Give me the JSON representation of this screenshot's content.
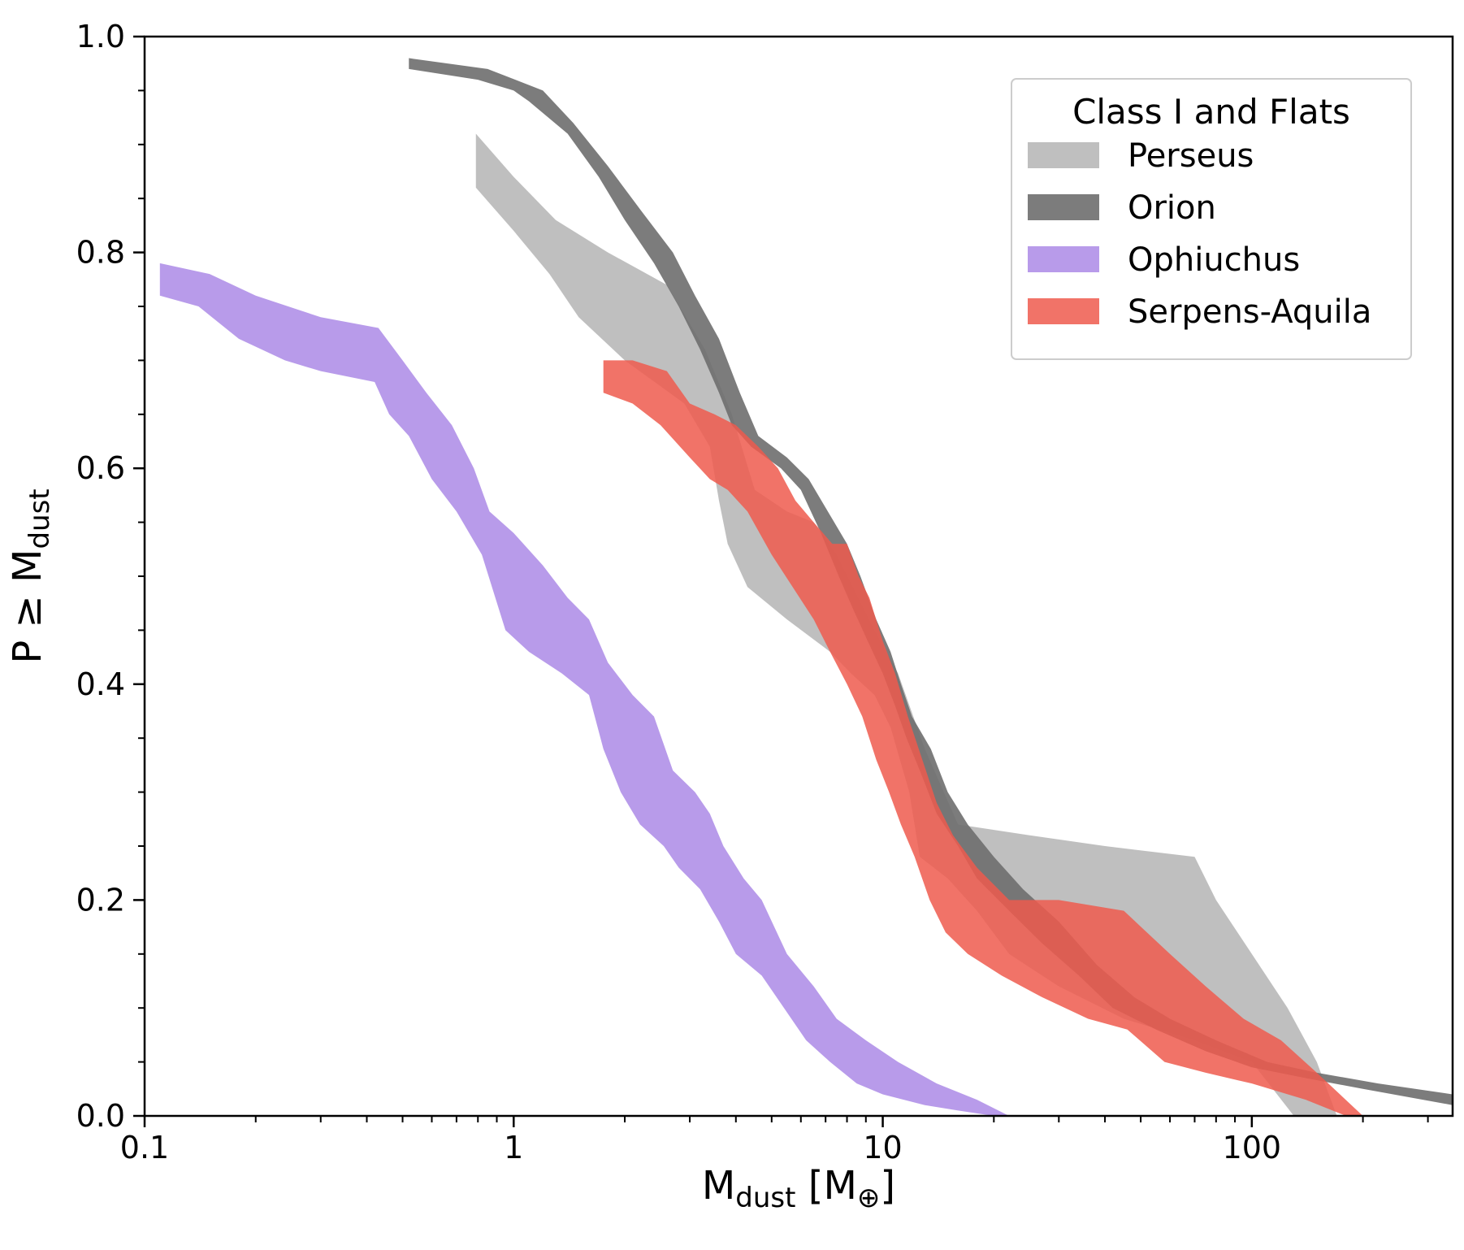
{
  "chart_data": {
    "type": "area",
    "xlabel": {
      "main": "M",
      "sub": "dust",
      "unit_open": " [M",
      "unit_sub": "⊕",
      "unit_close": "]"
    },
    "ylabel": {
      "main": "P ≥ M",
      "sub": "dust"
    },
    "x_scale": "log",
    "xlim": [
      0.1,
      350
    ],
    "ylim": [
      0.0,
      1.0
    ],
    "x_major_ticks": [
      {
        "value": 0.1,
        "label": "0.1"
      },
      {
        "value": 1,
        "label": "1"
      },
      {
        "value": 10,
        "label": "10"
      },
      {
        "value": 100,
        "label": "100"
      }
    ],
    "y_major_ticks": [
      {
        "value": 0.0,
        "label": "0.0"
      },
      {
        "value": 0.2,
        "label": "0.2"
      },
      {
        "value": 0.4,
        "label": "0.4"
      },
      {
        "value": 0.6,
        "label": "0.6"
      },
      {
        "value": 0.8,
        "label": "0.8"
      },
      {
        "value": 1.0,
        "label": "1.0"
      }
    ],
    "grid": false,
    "legend": {
      "title": "Class I and Flats",
      "placement": "top-right",
      "entries": [
        "Perseus",
        "Orion",
        "Ophiuchus",
        "Serpens-Aquila"
      ]
    },
    "series": [
      {
        "name": "Perseus",
        "color": "#b8b8b8",
        "opacity": 0.9,
        "upper": [
          [
            0.79,
            0.91
          ],
          [
            1.0,
            0.87
          ],
          [
            1.3,
            0.83
          ],
          [
            1.8,
            0.8
          ],
          [
            2.6,
            0.77
          ],
          [
            3.3,
            0.71
          ],
          [
            3.9,
            0.65
          ],
          [
            4.5,
            0.58
          ],
          [
            5.5,
            0.56
          ],
          [
            6.5,
            0.55
          ],
          [
            7.5,
            0.52
          ],
          [
            9.5,
            0.45
          ],
          [
            11,
            0.41
          ],
          [
            13,
            0.34
          ],
          [
            16,
            0.27
          ],
          [
            25,
            0.26
          ],
          [
            40,
            0.25
          ],
          [
            70,
            0.24
          ],
          [
            80,
            0.2
          ],
          [
            100,
            0.15
          ],
          [
            125,
            0.1
          ],
          [
            150,
            0.05
          ],
          [
            170,
            0.0
          ]
        ],
        "lower": [
          [
            0.79,
            0.86
          ],
          [
            1.0,
            0.82
          ],
          [
            1.25,
            0.78
          ],
          [
            1.5,
            0.74
          ],
          [
            2.0,
            0.7
          ],
          [
            2.9,
            0.66
          ],
          [
            3.4,
            0.62
          ],
          [
            3.6,
            0.57
          ],
          [
            3.8,
            0.53
          ],
          [
            4.3,
            0.49
          ],
          [
            5.5,
            0.46
          ],
          [
            7.2,
            0.43
          ],
          [
            8.2,
            0.41
          ],
          [
            9.5,
            0.39
          ],
          [
            10.5,
            0.36
          ],
          [
            11.8,
            0.3
          ],
          [
            12.6,
            0.24
          ],
          [
            15,
            0.22
          ],
          [
            18,
            0.19
          ],
          [
            22,
            0.15
          ],
          [
            30,
            0.12
          ],
          [
            45,
            0.09
          ],
          [
            70,
            0.07
          ],
          [
            100,
            0.05
          ],
          [
            130,
            0.0
          ]
        ]
      },
      {
        "name": "Orion",
        "color": "#6e6e6e",
        "opacity": 0.9,
        "upper": [
          [
            0.52,
            0.98
          ],
          [
            0.85,
            0.97
          ],
          [
            1.2,
            0.95
          ],
          [
            1.45,
            0.92
          ],
          [
            1.8,
            0.88
          ],
          [
            2.2,
            0.84
          ],
          [
            2.7,
            0.8
          ],
          [
            3.1,
            0.76
          ],
          [
            3.6,
            0.72
          ],
          [
            4.1,
            0.67
          ],
          [
            4.6,
            0.63
          ],
          [
            5.5,
            0.61
          ],
          [
            6.3,
            0.59
          ],
          [
            7.1,
            0.56
          ],
          [
            8.0,
            0.53
          ],
          [
            8.7,
            0.5
          ],
          [
            9.6,
            0.46
          ],
          [
            10.5,
            0.43
          ],
          [
            11.2,
            0.4
          ],
          [
            12,
            0.37
          ],
          [
            13.5,
            0.34
          ],
          [
            15,
            0.3
          ],
          [
            17,
            0.27
          ],
          [
            20,
            0.24
          ],
          [
            24,
            0.21
          ],
          [
            30,
            0.18
          ],
          [
            38,
            0.14
          ],
          [
            48,
            0.11
          ],
          [
            60,
            0.09
          ],
          [
            80,
            0.07
          ],
          [
            110,
            0.05
          ],
          [
            150,
            0.04
          ],
          [
            220,
            0.03
          ],
          [
            350,
            0.02
          ]
        ],
        "lower": [
          [
            0.52,
            0.97
          ],
          [
            0.8,
            0.96
          ],
          [
            1.0,
            0.95
          ],
          [
            1.1,
            0.94
          ],
          [
            1.4,
            0.91
          ],
          [
            1.7,
            0.87
          ],
          [
            2.0,
            0.83
          ],
          [
            2.4,
            0.79
          ],
          [
            2.8,
            0.75
          ],
          [
            3.2,
            0.71
          ],
          [
            3.6,
            0.67
          ],
          [
            3.9,
            0.64
          ],
          [
            4.4,
            0.62
          ],
          [
            5.3,
            0.6
          ],
          [
            6.0,
            0.58
          ],
          [
            6.8,
            0.54
          ],
          [
            7.6,
            0.5
          ],
          [
            8.3,
            0.47
          ],
          [
            9.1,
            0.44
          ],
          [
            10.0,
            0.41
          ],
          [
            10.8,
            0.38
          ],
          [
            11.6,
            0.35
          ],
          [
            12.6,
            0.32
          ],
          [
            14,
            0.28
          ],
          [
            16,
            0.25
          ],
          [
            18,
            0.22
          ],
          [
            22,
            0.19
          ],
          [
            27,
            0.16
          ],
          [
            34,
            0.13
          ],
          [
            42,
            0.1
          ],
          [
            55,
            0.08
          ],
          [
            75,
            0.06
          ],
          [
            100,
            0.045
          ],
          [
            140,
            0.035
          ],
          [
            200,
            0.025
          ],
          [
            350,
            0.01
          ]
        ]
      },
      {
        "name": "Ophiuchus",
        "color": "#b090e8",
        "opacity": 0.9,
        "upper": [
          [
            0.11,
            0.79
          ],
          [
            0.15,
            0.78
          ],
          [
            0.2,
            0.76
          ],
          [
            0.3,
            0.74
          ],
          [
            0.43,
            0.73
          ],
          [
            0.5,
            0.7
          ],
          [
            0.58,
            0.67
          ],
          [
            0.68,
            0.64
          ],
          [
            0.78,
            0.6
          ],
          [
            0.86,
            0.56
          ],
          [
            1.0,
            0.54
          ],
          [
            1.2,
            0.51
          ],
          [
            1.4,
            0.48
          ],
          [
            1.6,
            0.46
          ],
          [
            1.8,
            0.42
          ],
          [
            2.1,
            0.39
          ],
          [
            2.4,
            0.37
          ],
          [
            2.7,
            0.32
          ],
          [
            3.1,
            0.3
          ],
          [
            3.4,
            0.28
          ],
          [
            3.7,
            0.25
          ],
          [
            4.2,
            0.22
          ],
          [
            4.7,
            0.2
          ],
          [
            5.5,
            0.15
          ],
          [
            6.5,
            0.12
          ],
          [
            7.5,
            0.09
          ],
          [
            9,
            0.07
          ],
          [
            11,
            0.05
          ],
          [
            14,
            0.03
          ],
          [
            18,
            0.015
          ],
          [
            22,
            0.0
          ]
        ],
        "lower": [
          [
            0.11,
            0.76
          ],
          [
            0.14,
            0.75
          ],
          [
            0.18,
            0.72
          ],
          [
            0.24,
            0.7
          ],
          [
            0.3,
            0.69
          ],
          [
            0.42,
            0.68
          ],
          [
            0.46,
            0.65
          ],
          [
            0.52,
            0.63
          ],
          [
            0.6,
            0.59
          ],
          [
            0.7,
            0.56
          ],
          [
            0.82,
            0.52
          ],
          [
            0.95,
            0.45
          ],
          [
            1.1,
            0.43
          ],
          [
            1.35,
            0.41
          ],
          [
            1.6,
            0.39
          ],
          [
            1.75,
            0.34
          ],
          [
            1.95,
            0.3
          ],
          [
            2.2,
            0.27
          ],
          [
            2.55,
            0.25
          ],
          [
            2.8,
            0.23
          ],
          [
            3.2,
            0.21
          ],
          [
            3.6,
            0.18
          ],
          [
            4.0,
            0.15
          ],
          [
            4.7,
            0.13
          ],
          [
            5.4,
            0.1
          ],
          [
            6.2,
            0.07
          ],
          [
            7.2,
            0.05
          ],
          [
            8.5,
            0.03
          ],
          [
            10,
            0.02
          ],
          [
            13,
            0.01
          ],
          [
            16,
            0.005
          ],
          [
            20,
            0.0
          ]
        ]
      },
      {
        "name": "Serpens-Aquila",
        "color": "#ee5a4d",
        "opacity": 0.85,
        "upper": [
          [
            1.75,
            0.7
          ],
          [
            2.1,
            0.7
          ],
          [
            2.6,
            0.69
          ],
          [
            3.0,
            0.66
          ],
          [
            3.5,
            0.65
          ],
          [
            4.0,
            0.64
          ],
          [
            4.6,
            0.62
          ],
          [
            5.2,
            0.6
          ],
          [
            5.8,
            0.57
          ],
          [
            6.5,
            0.55
          ],
          [
            7.3,
            0.53
          ],
          [
            8.0,
            0.53
          ],
          [
            8.6,
            0.5
          ],
          [
            9.2,
            0.48
          ],
          [
            10.0,
            0.44
          ],
          [
            10.8,
            0.41
          ],
          [
            11.7,
            0.37
          ],
          [
            12.8,
            0.33
          ],
          [
            14.0,
            0.29
          ],
          [
            15.5,
            0.26
          ],
          [
            18,
            0.23
          ],
          [
            22,
            0.2
          ],
          [
            30,
            0.2
          ],
          [
            45,
            0.19
          ],
          [
            60,
            0.15
          ],
          [
            75,
            0.12
          ],
          [
            95,
            0.09
          ],
          [
            120,
            0.07
          ],
          [
            150,
            0.04
          ],
          [
            200,
            0.0
          ]
        ],
        "lower": [
          [
            1.75,
            0.67
          ],
          [
            2.1,
            0.66
          ],
          [
            2.5,
            0.64
          ],
          [
            3.0,
            0.61
          ],
          [
            3.4,
            0.59
          ],
          [
            3.8,
            0.58
          ],
          [
            4.3,
            0.56
          ],
          [
            5.0,
            0.52
          ],
          [
            5.7,
            0.49
          ],
          [
            6.5,
            0.46
          ],
          [
            7.2,
            0.43
          ],
          [
            8.0,
            0.4
          ],
          [
            8.8,
            0.37
          ],
          [
            9.6,
            0.33
          ],
          [
            10.4,
            0.3
          ],
          [
            11.2,
            0.27
          ],
          [
            12.2,
            0.24
          ],
          [
            13.4,
            0.2
          ],
          [
            14.8,
            0.17
          ],
          [
            17,
            0.15
          ],
          [
            21,
            0.13
          ],
          [
            27,
            0.11
          ],
          [
            36,
            0.09
          ],
          [
            46,
            0.08
          ],
          [
            58,
            0.05
          ],
          [
            75,
            0.04
          ],
          [
            100,
            0.03
          ],
          [
            140,
            0.015
          ],
          [
            180,
            0.0
          ]
        ]
      }
    ]
  }
}
